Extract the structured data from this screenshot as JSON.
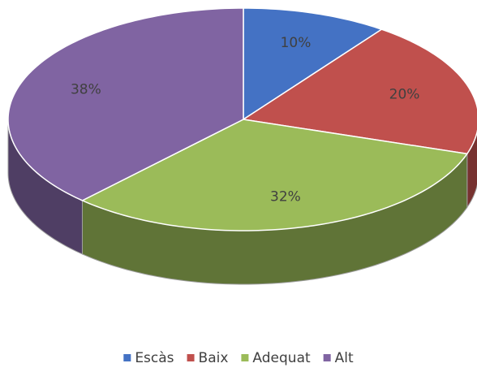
{
  "chart_data": {
    "type": "pie",
    "categories": [
      "Escàs",
      "Baix",
      "Adequat",
      "Alt"
    ],
    "values": [
      10,
      20,
      32,
      38
    ],
    "value_labels": [
      "10%",
      "20%",
      "32%",
      "38%"
    ],
    "colors": [
      "#4472c4",
      "#c0504d",
      "#9bbb59",
      "#8064a2"
    ],
    "legend": "bottom"
  }
}
